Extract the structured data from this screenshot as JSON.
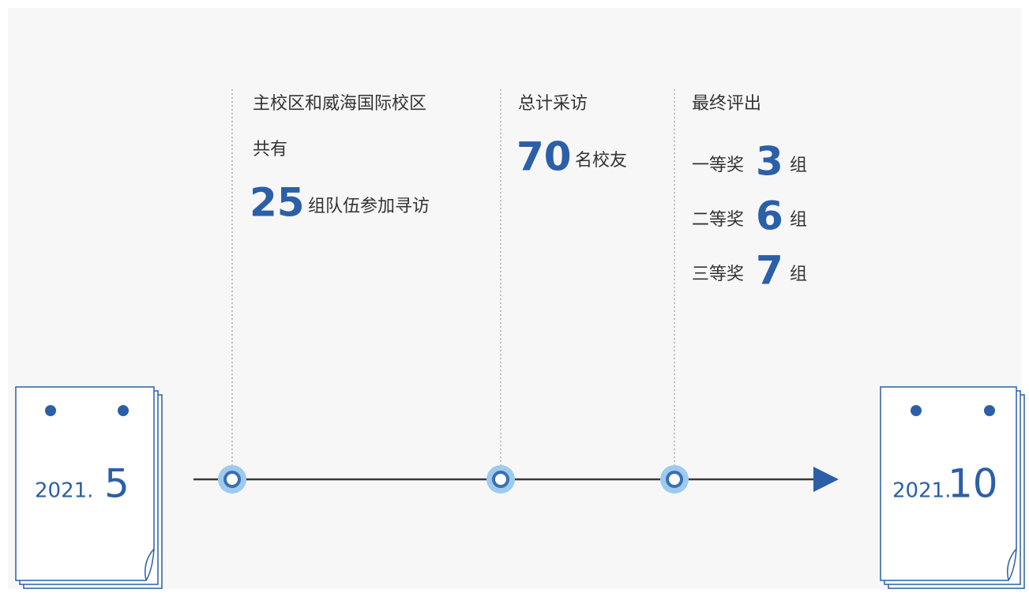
{
  "calendars": {
    "start": {
      "year": "2021.",
      "month": "5"
    },
    "end": {
      "year": "2021.",
      "month": "10"
    }
  },
  "milestones": [
    {
      "lines": [
        "主校区和威海国际校区",
        "共有"
      ],
      "number": 25,
      "suffix": "组队伍参加寻访"
    },
    {
      "lines": [
        "总计采访"
      ],
      "number": 70,
      "suffix": "名校友"
    },
    {
      "lines": [
        "最终评出"
      ],
      "awards": [
        {
          "label": "一等奖",
          "number": 3,
          "unit": "组"
        },
        {
          "label": "二等奖",
          "number": 6,
          "unit": "组"
        },
        {
          "label": "三等奖",
          "number": 7,
          "unit": "组"
        }
      ]
    }
  ]
}
